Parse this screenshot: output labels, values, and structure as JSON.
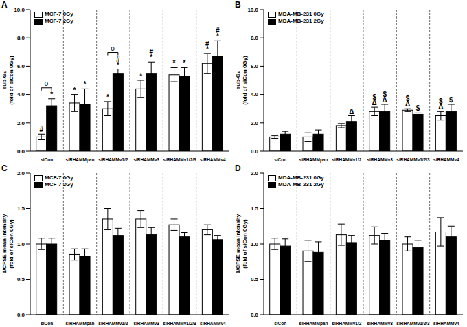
{
  "chart_data": [
    {
      "type": "bar",
      "title": "A",
      "y_label": "sub-G₁\n(fold of siCon 0Gy)",
      "categories": [
        "siCon",
        "siRHAMMpan",
        "siRHAMMv1/2",
        "siRHAMMv3",
        "siRHAMMv1/2/3",
        "siRHAMMv4"
      ],
      "series": [
        {
          "name": "MCF-7 0Gy",
          "color": "#ffffff",
          "values": [
            1.0,
            3.4,
            3.0,
            4.4,
            5.4,
            6.2
          ],
          "errors": [
            0.2,
            0.6,
            0.5,
            0.6,
            0.5,
            0.7
          ]
        },
        {
          "name": "MCF-7 2Gy",
          "color": "#000000",
          "values": [
            3.2,
            3.3,
            5.5,
            5.5,
            5.3,
            6.7
          ],
          "errors": [
            0.5,
            1.1,
            0.3,
            0.8,
            0.6,
            1.1
          ]
        }
      ],
      "ylim": [
        0,
        10
      ],
      "yticks": [
        {
          "value": 0,
          "label": "0.0"
        },
        {
          "value": 2,
          "label": "2.0"
        },
        {
          "value": 4,
          "label": "4.0"
        },
        {
          "value": 6,
          "label": "6.0"
        },
        {
          "value": 8,
          "label": "8.0"
        },
        {
          "value": 10,
          "label": "10.0"
        }
      ],
      "legend": "upper left",
      "annotations": [
        {
          "category": "siCon",
          "series": "MCF-7 0Gy",
          "texts": [
            "#"
          ]
        },
        {
          "category": "siCon",
          "series": "MCF-7 2Gy",
          "texts": [
            "*"
          ]
        },
        {
          "category": "siRHAMMpan",
          "series": "MCF-7 0Gy",
          "texts": [
            "*"
          ]
        },
        {
          "category": "siRHAMMpan",
          "series": "MCF-7 2Gy",
          "texts": [
            "*"
          ]
        },
        {
          "category": "siRHAMMv1/2",
          "series": "MCF-7 0Gy",
          "texts": [
            "*"
          ]
        },
        {
          "category": "siRHAMMv1/2",
          "series": "MCF-7 2Gy",
          "texts": [
            "#",
            "*"
          ]
        },
        {
          "category": "siRHAMMv3",
          "series": "MCF-7 0Gy",
          "texts": [
            "*"
          ]
        },
        {
          "category": "siRHAMMv3",
          "series": "MCF-7 2Gy",
          "texts": [
            "#",
            "*"
          ]
        },
        {
          "category": "siRHAMMv1/2/3",
          "series": "MCF-7 0Gy",
          "texts": [
            "*"
          ]
        },
        {
          "category": "siRHAMMv1/2/3",
          "series": "MCF-7 2Gy",
          "texts": [
            "*"
          ]
        },
        {
          "category": "siRHAMMv4",
          "series": "MCF-7 0Gy",
          "texts": [
            "#",
            "*"
          ]
        },
        {
          "category": "siRHAMMv4",
          "series": "MCF-7 2Gy",
          "texts": [
            "#",
            "*"
          ]
        }
      ],
      "brackets": [
        {
          "category": "siCon",
          "text": "σ"
        },
        {
          "category": "siRHAMMv1/2",
          "text": "σ"
        }
      ]
    },
    {
      "type": "bar",
      "title": "B",
      "y_label": "sub-G₁\n(fold of siCon 0Gy)",
      "categories": [
        "siCon",
        "siRHAMMpan",
        "siRHAMMv1/2",
        "siRHAMMv3",
        "siRHAMMv1/2/3",
        "siRHAMMv4"
      ],
      "series": [
        {
          "name": "MDA-MB-231 0Gy",
          "color": "#ffffff",
          "values": [
            1.0,
            1.0,
            1.8,
            2.8,
            2.9,
            2.5
          ],
          "errors": [
            0.1,
            0.3,
            0.15,
            0.3,
            0.1,
            0.3
          ]
        },
        {
          "name": "MDA-MB-231 2Gy",
          "color": "#000000",
          "values": [
            1.2,
            1.2,
            2.1,
            2.8,
            2.6,
            2.8
          ],
          "errors": [
            0.2,
            0.3,
            0.4,
            0.5,
            0.1,
            0.5
          ]
        }
      ],
      "ylim": [
        0,
        10
      ],
      "yticks": [
        {
          "value": 0,
          "label": "0.0"
        },
        {
          "value": 2,
          "label": "2.0"
        },
        {
          "value": 4,
          "label": "4.0"
        },
        {
          "value": 6,
          "label": "6.0"
        },
        {
          "value": 8,
          "label": "8.0"
        },
        {
          "value": 10,
          "label": "10.0"
        }
      ],
      "legend": "upper left",
      "annotations": [
        {
          "category": "siRHAMMv1/2",
          "series": "MDA-MB-231 2Gy",
          "texts": [
            "Δ"
          ]
        },
        {
          "category": "siRHAMMv3",
          "series": "MDA-MB-231 0Gy",
          "texts": [
            "$",
            "Δ"
          ]
        },
        {
          "category": "siRHAMMv3",
          "series": "MDA-MB-231 2Gy",
          "texts": [
            "$",
            "Δ"
          ]
        },
        {
          "category": "siRHAMMv1/2/3",
          "series": "MDA-MB-231 0Gy",
          "texts": [
            "$",
            "Δ"
          ]
        },
        {
          "category": "siRHAMMv1/2/3",
          "series": "MDA-MB-231 2Gy",
          "texts": [
            "$"
          ]
        },
        {
          "category": "siRHAMMv4",
          "series": "MDA-MB-231 0Gy",
          "texts": [
            "$",
            "Δ"
          ]
        },
        {
          "category": "siRHAMMv4",
          "series": "MDA-MB-231 2Gy",
          "texts": [
            "$"
          ]
        }
      ],
      "brackets": []
    },
    {
      "type": "bar",
      "title": "C",
      "y_label": "1/CFSE mean intensity\n(fold of siCon 0Gy)",
      "categories": [
        "siCon",
        "siRHAMMpan",
        "siRHAMMv1/2",
        "siRHAMMv3",
        "siRHAMMv1/2/3",
        "siRHAMMv4"
      ],
      "series": [
        {
          "name": "MCF-7 0Gy",
          "color": "#ffffff",
          "values": [
            1.0,
            0.85,
            1.35,
            1.35,
            1.27,
            1.2
          ],
          "errors": [
            0.08,
            0.08,
            0.15,
            0.12,
            0.08,
            0.07
          ]
        },
        {
          "name": "MCF-7 2Gy",
          "color": "#000000",
          "values": [
            1.0,
            0.83,
            1.12,
            1.13,
            1.1,
            1.06
          ],
          "errors": [
            0.08,
            0.1,
            0.1,
            0.1,
            0.06,
            0.06
          ]
        }
      ],
      "ylim": [
        0,
        2
      ],
      "yticks": [
        {
          "value": 0,
          "label": "0.0"
        },
        {
          "value": 0.5,
          "label": "0.5"
        },
        {
          "value": 1,
          "label": "1.0"
        },
        {
          "value": 1.5,
          "label": "1.5"
        },
        {
          "value": 2,
          "label": "2.0"
        }
      ],
      "legend": "upper left",
      "annotations": [],
      "brackets": []
    },
    {
      "type": "bar",
      "title": "D",
      "y_label": "1/CFSE mean intensity\n(fold of siCon 0Gy)",
      "categories": [
        "siCon",
        "siRHAMMpan",
        "siRHAMMv1/2",
        "siRHAMMv3",
        "siRHAMMv1/2/3",
        "siRHAMMv4"
      ],
      "series": [
        {
          "name": "MDA-MB-231 0Gy",
          "color": "#ffffff",
          "values": [
            1.0,
            0.9,
            1.13,
            1.12,
            1.0,
            1.17
          ],
          "errors": [
            0.08,
            0.15,
            0.15,
            0.12,
            0.1,
            0.2
          ]
        },
        {
          "name": "MDA-MB-231 2Gy",
          "color": "#000000",
          "values": [
            0.97,
            0.88,
            1.02,
            1.05,
            0.95,
            1.1
          ],
          "errors": [
            0.1,
            0.15,
            0.1,
            0.1,
            0.1,
            0.15
          ]
        }
      ],
      "ylim": [
        0,
        2
      ],
      "yticks": [
        {
          "value": 0,
          "label": "0.0"
        },
        {
          "value": 0.5,
          "label": "0.5"
        },
        {
          "value": 1,
          "label": "1.0"
        },
        {
          "value": 1.5,
          "label": "1.5"
        },
        {
          "value": 2,
          "label": "2.0"
        }
      ],
      "legend": "upper left",
      "annotations": [],
      "brackets": []
    }
  ]
}
